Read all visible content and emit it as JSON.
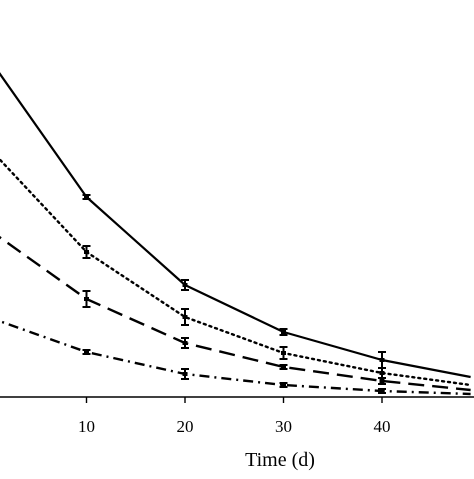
{
  "chart_data": {
    "type": "line",
    "title": "",
    "xlabel": "Time (d)",
    "ylabel": "",
    "x_ticks": [
      10,
      20,
      30,
      40
    ],
    "xlim": [
      0,
      49
    ],
    "ylim": [
      0,
      340
    ],
    "grid": false,
    "legend": "none",
    "series": [
      {
        "line_style": "solid",
        "color": "#000000",
        "x": [
          0,
          10,
          20,
          30,
          40,
          49
        ],
        "y": [
          340,
          200,
          112,
          65,
          37,
          20
        ],
        "err": [
          0,
          2,
          5,
          3,
          8,
          2
        ]
      },
      {
        "line_style": "dotted",
        "color": "#000000",
        "x": [
          0,
          10,
          20,
          30,
          40,
          49
        ],
        "y": [
          250,
          145,
          80,
          44,
          24,
          12
        ],
        "err": [
          0,
          6,
          8,
          6,
          5,
          2
        ]
      },
      {
        "line_style": "long-dash",
        "color": "#000000",
        "x": [
          0,
          10,
          20,
          30,
          40,
          49
        ],
        "y": [
          168,
          98,
          54,
          30,
          16,
          7
        ],
        "err": [
          0,
          8,
          5,
          2,
          3,
          2
        ]
      },
      {
        "line_style": "dash-dot",
        "color": "#000000",
        "x": [
          0,
          10,
          20,
          30,
          40,
          49
        ],
        "y": [
          80,
          45,
          23,
          12,
          6,
          3
        ],
        "err": [
          0,
          2,
          5,
          2,
          2,
          1
        ]
      }
    ]
  }
}
